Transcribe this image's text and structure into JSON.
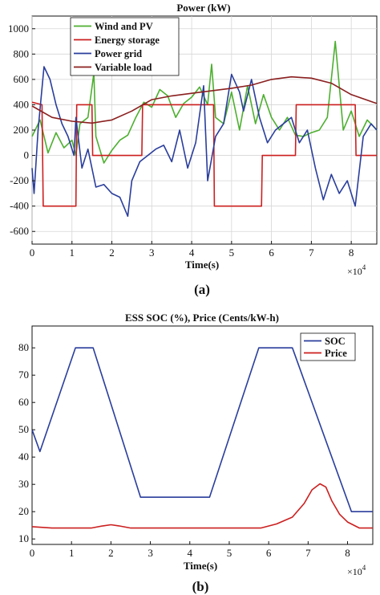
{
  "chart_data": [
    {
      "type": "line",
      "title": "Power  (kW)",
      "xlabel": "Time(s)",
      "ylabel": "",
      "x_multiplier": "×10",
      "x_multiplier_exp": "4",
      "caption": "(a)",
      "xlim": [
        0,
        8.64
      ],
      "ylim": [
        -700,
        1100
      ],
      "xticks": [
        0,
        1,
        2,
        3,
        4,
        5,
        6,
        7,
        8
      ],
      "yticks": [
        -600,
        -400,
        -200,
        0,
        200,
        400,
        600,
        800,
        1000
      ],
      "grid": true,
      "legend_position": "top-left",
      "series": [
        {
          "name": "Wind and PV",
          "color": "#4daf2f",
          "x": [
            0,
            0.2,
            0.4,
            0.6,
            0.8,
            1.0,
            1.1,
            1.2,
            1.4,
            1.55,
            1.6,
            1.8,
            2.0,
            2.2,
            2.4,
            2.6,
            2.8,
            3.0,
            3.2,
            3.4,
            3.6,
            3.8,
            4.0,
            4.2,
            4.4,
            4.5,
            4.6,
            4.8,
            5.0,
            5.2,
            5.4,
            5.6,
            5.8,
            6.0,
            6.2,
            6.4,
            6.6,
            6.8,
            7.0,
            7.2,
            7.4,
            7.6,
            7.8,
            8.0,
            8.2,
            8.4,
            8.64
          ],
          "values": [
            150,
            280,
            20,
            180,
            60,
            120,
            0,
            250,
            300,
            650,
            150,
            -60,
            40,
            120,
            160,
            300,
            420,
            380,
            520,
            470,
            300,
            410,
            460,
            540,
            400,
            720,
            300,
            250,
            500,
            200,
            550,
            250,
            480,
            300,
            200,
            300,
            160,
            150,
            180,
            200,
            300,
            900,
            200,
            350,
            150,
            280,
            200
          ]
        },
        {
          "name": "Energy storage",
          "color": "#cc1f1f",
          "x": [
            0,
            0.25,
            0.28,
            1.1,
            1.12,
            1.5,
            1.52,
            2.75,
            2.77,
            4.55,
            4.57,
            5.75,
            5.77,
            6.6,
            6.62,
            8.1,
            8.12,
            8.64
          ],
          "values": [
            420,
            400,
            -400,
            -400,
            400,
            400,
            0,
            0,
            400,
            400,
            -400,
            -400,
            0,
            0,
            400,
            400,
            0,
            0
          ]
        },
        {
          "name": "Power grid",
          "color": "#2a3e9c",
          "x": [
            0,
            0.05,
            0.15,
            0.3,
            0.45,
            0.6,
            0.75,
            0.9,
            1.05,
            1.1,
            1.25,
            1.4,
            1.6,
            1.8,
            2.0,
            2.2,
            2.4,
            2.5,
            2.7,
            2.9,
            3.1,
            3.3,
            3.5,
            3.7,
            3.9,
            4.1,
            4.3,
            4.4,
            4.6,
            4.8,
            5.0,
            5.2,
            5.3,
            5.5,
            5.7,
            5.9,
            6.1,
            6.3,
            6.5,
            6.7,
            6.9,
            7.1,
            7.3,
            7.5,
            7.7,
            7.9,
            8.1,
            8.3,
            8.5,
            8.64
          ],
          "values": [
            -100,
            -300,
            200,
            700,
            600,
            400,
            250,
            150,
            0,
            300,
            -100,
            50,
            -250,
            -230,
            -300,
            -330,
            -480,
            -200,
            -50,
            0,
            50,
            80,
            -50,
            200,
            -100,
            100,
            550,
            -200,
            150,
            250,
            640,
            500,
            350,
            600,
            300,
            100,
            200,
            250,
            300,
            100,
            200,
            -100,
            -350,
            -150,
            -300,
            -200,
            -400,
            150,
            250,
            200
          ]
        },
        {
          "name": "Variable load",
          "color": "#8b1f1f",
          "x": [
            0,
            0.5,
            1.0,
            1.5,
            2.0,
            2.5,
            3.0,
            3.5,
            4.0,
            4.5,
            5.0,
            5.5,
            6.0,
            6.5,
            7.0,
            7.5,
            8.0,
            8.64
          ],
          "values": [
            390,
            300,
            270,
            255,
            280,
            350,
            440,
            470,
            490,
            510,
            530,
            555,
            600,
            620,
            610,
            570,
            480,
            410
          ]
        }
      ]
    },
    {
      "type": "line",
      "title": "ESS SOC (%), Price (Cents/kW-h)",
      "xlabel": "Time(s)",
      "ylabel": "",
      "x_multiplier": "×10",
      "x_multiplier_exp": "4",
      "caption": "(b)",
      "xlim": [
        0,
        8.64
      ],
      "ylim": [
        8,
        88
      ],
      "xticks": [
        0,
        1,
        2,
        3,
        4,
        5,
        6,
        7,
        8
      ],
      "yticks": [
        10,
        20,
        30,
        40,
        50,
        60,
        70,
        80
      ],
      "grid": false,
      "legend_position": "top-right",
      "series": [
        {
          "name": "SOC",
          "color": "#2a3e9c",
          "x": [
            0,
            0.2,
            1.1,
            1.55,
            2.75,
            4.5,
            5.75,
            6.6,
            8.1,
            8.64
          ],
          "values": [
            50,
            42,
            80,
            80,
            25.3,
            25.3,
            80,
            80,
            20,
            20
          ]
        },
        {
          "name": "Price",
          "color": "#cc1f1f",
          "x": [
            0,
            0.5,
            1.0,
            1.5,
            1.8,
            2.0,
            2.2,
            2.5,
            3.0,
            4.0,
            5.0,
            5.8,
            6.2,
            6.6,
            6.9,
            7.1,
            7.3,
            7.45,
            7.6,
            7.8,
            8.0,
            8.3,
            8.64
          ],
          "values": [
            14.5,
            14,
            14,
            14,
            14.8,
            15.2,
            14.8,
            14,
            14,
            14,
            14,
            14,
            15.5,
            18,
            23,
            28,
            30.2,
            29,
            24,
            19,
            16.2,
            14,
            14
          ]
        }
      ]
    }
  ]
}
